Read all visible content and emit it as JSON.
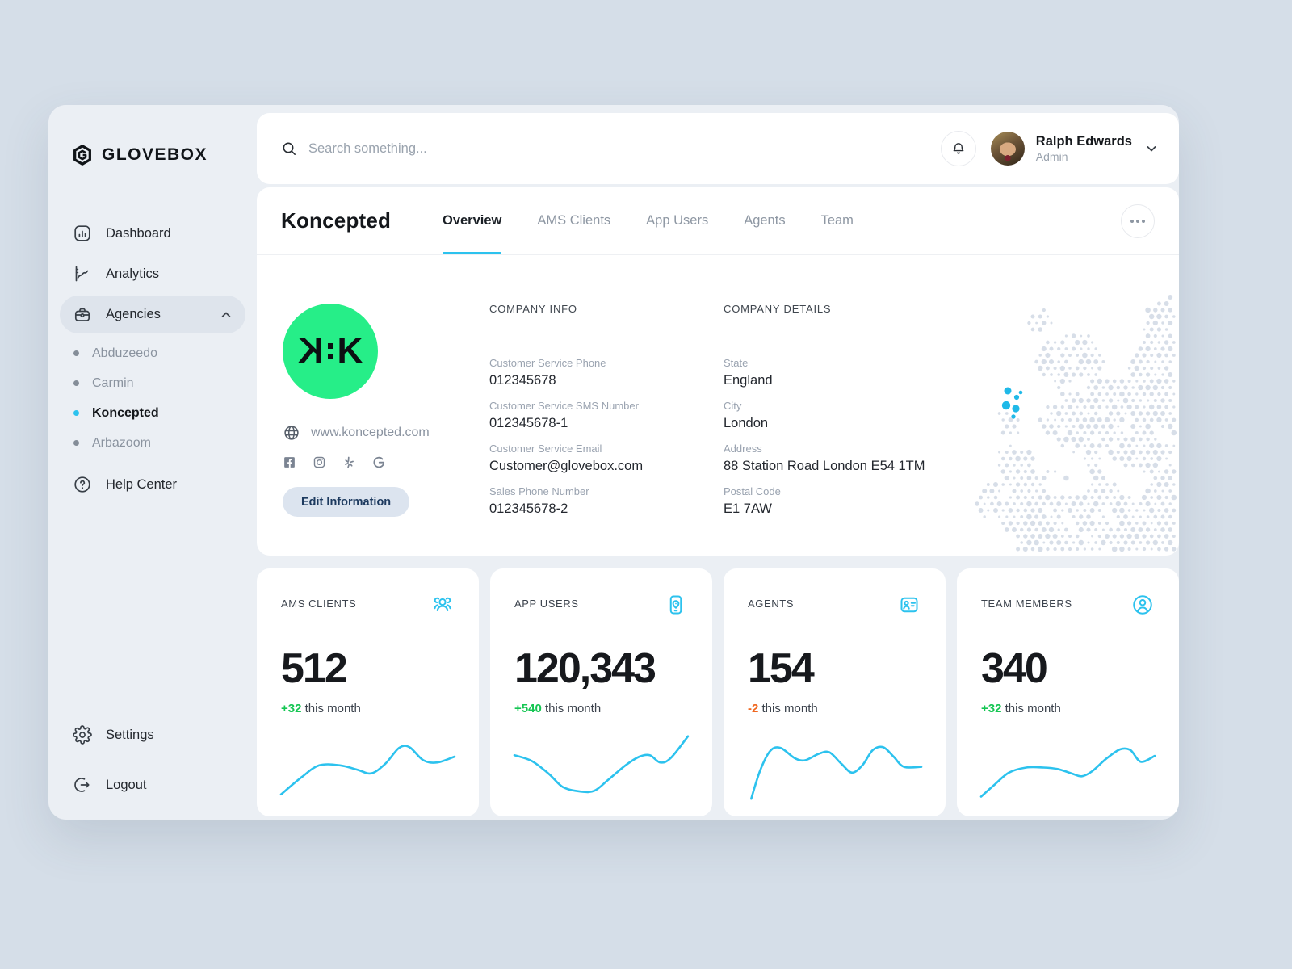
{
  "colors": {
    "accent": "#2cc2ee",
    "green": "#15c653",
    "orange": "#f0671f",
    "logo_green": "#26ee88",
    "map_dot": "#d7dee8",
    "map_highlight": "#1fb9e8"
  },
  "brand": {
    "name": "GLOVEBOX"
  },
  "sidebar": {
    "items": [
      {
        "label": "Dashboard"
      },
      {
        "label": "Analytics"
      },
      {
        "label": "Agencies"
      }
    ],
    "agencies": [
      {
        "label": "Abduzeedo"
      },
      {
        "label": "Carmin"
      },
      {
        "label": "Koncepted"
      },
      {
        "label": "Arbazoom"
      }
    ],
    "help_label": "Help Center",
    "settings_label": "Settings",
    "logout_label": "Logout"
  },
  "topbar": {
    "search_placeholder": "Search something...",
    "user_name": "Ralph Edwards",
    "user_role": "Admin"
  },
  "page": {
    "title": "Koncepted",
    "tabs": [
      {
        "label": "Overview"
      },
      {
        "label": "AMS Clients"
      },
      {
        "label": "App Users"
      },
      {
        "label": "Agents"
      },
      {
        "label": "Team"
      }
    ]
  },
  "company": {
    "logo_letter": "K",
    "website": "www.koncepted.com",
    "edit_button": "Edit Information",
    "info": {
      "title": "COMPANY INFO",
      "fields": [
        {
          "label": "Customer Service Phone",
          "value": "012345678"
        },
        {
          "label": "Customer Service SMS Number",
          "value": "012345678-1"
        },
        {
          "label": "Customer Service Email",
          "value": "Customer@glovebox.com"
        },
        {
          "label": "Sales Phone Number",
          "value": "012345678-2"
        }
      ]
    },
    "details": {
      "title": "COMPANY DETAILS",
      "fields": [
        {
          "label": "State",
          "value": "England"
        },
        {
          "label": "City",
          "value": "London"
        },
        {
          "label": "Address",
          "value": "88 Station Road London E54 1TM"
        },
        {
          "label": "Postal Code",
          "value": "E1 7AW"
        }
      ]
    }
  },
  "stats": [
    {
      "label": "AMS CLIENTS",
      "value": "512",
      "delta": "+32",
      "delta_suffix": " this month",
      "delta_color": "#15c653",
      "spark": [
        [
          0,
          92
        ],
        [
          12,
          68
        ],
        [
          22,
          52
        ],
        [
          34,
          52
        ],
        [
          44,
          58
        ],
        [
          52,
          63
        ],
        [
          60,
          50
        ],
        [
          68,
          28
        ],
        [
          74,
          27
        ],
        [
          82,
          45
        ],
        [
          90,
          48
        ],
        [
          100,
          40
        ]
      ]
    },
    {
      "label": "APP USERS",
      "value": "120,343",
      "delta": "+540",
      "delta_suffix": " this month",
      "delta_color": "#15c653",
      "spark": [
        [
          0,
          38
        ],
        [
          10,
          46
        ],
        [
          20,
          64
        ],
        [
          28,
          82
        ],
        [
          38,
          88
        ],
        [
          46,
          87
        ],
        [
          54,
          72
        ],
        [
          64,
          52
        ],
        [
          72,
          40
        ],
        [
          78,
          38
        ],
        [
          84,
          48
        ],
        [
          90,
          42
        ],
        [
          100,
          12
        ]
      ]
    },
    {
      "label": "AGENTS",
      "value": "154",
      "delta": "-2",
      "delta_suffix": " this month",
      "delta_color": "#f0671f",
      "spark": [
        [
          2,
          98
        ],
        [
          7,
          60
        ],
        [
          13,
          32
        ],
        [
          19,
          28
        ],
        [
          27,
          42
        ],
        [
          33,
          45
        ],
        [
          41,
          36
        ],
        [
          47,
          34
        ],
        [
          54,
          50
        ],
        [
          60,
          62
        ],
        [
          66,
          52
        ],
        [
          72,
          31
        ],
        [
          78,
          27
        ],
        [
          84,
          40
        ],
        [
          90,
          54
        ],
        [
          100,
          54
        ]
      ]
    },
    {
      "label": "TEAM MEMBERS",
      "value": "340",
      "delta": "+32",
      "delta_suffix": " this month",
      "delta_color": "#15c653",
      "spark": [
        [
          0,
          95
        ],
        [
          8,
          78
        ],
        [
          16,
          62
        ],
        [
          26,
          55
        ],
        [
          36,
          55
        ],
        [
          44,
          57
        ],
        [
          52,
          63
        ],
        [
          58,
          67
        ],
        [
          64,
          60
        ],
        [
          72,
          43
        ],
        [
          80,
          30
        ],
        [
          86,
          31
        ],
        [
          92,
          47
        ],
        [
          100,
          39
        ]
      ]
    }
  ],
  "map": {
    "name": "europe-dot-map",
    "highlights": [
      [
        88,
        168,
        4.5
      ],
      [
        99,
        176,
        3.1
      ],
      [
        86,
        186,
        5.2
      ],
      [
        98,
        190,
        4.6
      ],
      [
        95,
        200,
        2.7
      ],
      [
        104,
        170,
        2.3
      ]
    ]
  }
}
